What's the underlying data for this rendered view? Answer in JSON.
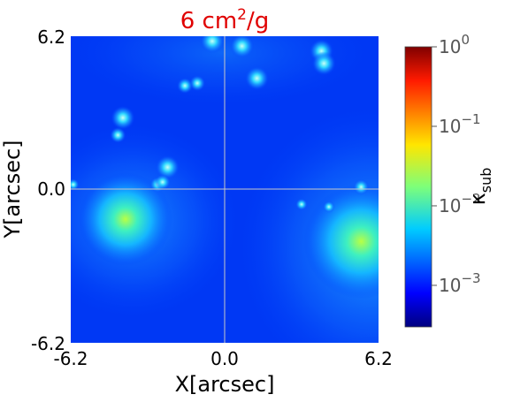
{
  "chart_data": {
    "type": "heatmap",
    "title": "6 cm²/g",
    "title_color": "#e00000",
    "xlabel": "X[arcsec]",
    "ylabel": "Y[arcsec]",
    "xlim": [
      -6.2,
      6.2
    ],
    "ylim": [
      -6.2,
      6.2
    ],
    "x_ticks": [
      -6.2,
      0.0,
      6.2
    ],
    "x_tick_labels": [
      "-6.2",
      "0.0",
      "6.2"
    ],
    "y_ticks": [
      -6.2,
      0.0,
      6.2
    ],
    "y_tick_labels": [
      "-6.2",
      "0.0",
      "6.2"
    ],
    "grid": true,
    "colormap": "jet",
    "colorbar": {
      "label": "κ_sub",
      "label_main": "κ",
      "label_sub": "sub",
      "scale": "log",
      "range": [
        0.0003,
        1
      ],
      "tick_bases": [
        "10",
        "10",
        "10",
        "10"
      ],
      "tick_exponents": [
        "0",
        "−1",
        "−2",
        "−3"
      ],
      "tick_values": [
        1,
        0.1,
        0.01,
        0.001
      ]
    },
    "subhalos": [
      {
        "x": -4.0,
        "y": -1.2,
        "kappa": 0.012
      },
      {
        "x": 5.5,
        "y": -2.1,
        "kappa": 0.02
      },
      {
        "x": 1.3,
        "y": 4.5,
        "kappa": 0.003
      },
      {
        "x": -0.5,
        "y": 6.0,
        "kappa": 0.003
      },
      {
        "x": 0.7,
        "y": 5.8,
        "kappa": 0.003
      },
      {
        "x": 3.9,
        "y": 5.6,
        "kappa": 0.003
      },
      {
        "x": 4.0,
        "y": 5.1,
        "kappa": 0.003
      },
      {
        "x": -2.3,
        "y": 0.9,
        "kappa": 0.003
      },
      {
        "x": -4.1,
        "y": 2.9,
        "kappa": 0.003
      },
      {
        "x": -1.1,
        "y": 4.3,
        "kappa": 0.002
      },
      {
        "x": -1.6,
        "y": 4.2,
        "kappa": 0.002
      },
      {
        "x": -2.7,
        "y": 0.2,
        "kappa": 0.002
      },
      {
        "x": -2.5,
        "y": 0.3,
        "kappa": 0.002
      },
      {
        "x": -4.3,
        "y": 2.2,
        "kappa": 0.002
      },
      {
        "x": 5.5,
        "y": 0.1,
        "kappa": 0.002
      },
      {
        "x": 3.1,
        "y": -0.6,
        "kappa": 0.0015
      },
      {
        "x": 4.2,
        "y": -0.7,
        "kappa": 0.0015
      },
      {
        "x": -6.1,
        "y": 0.2,
        "kappa": 0.0015
      }
    ]
  }
}
